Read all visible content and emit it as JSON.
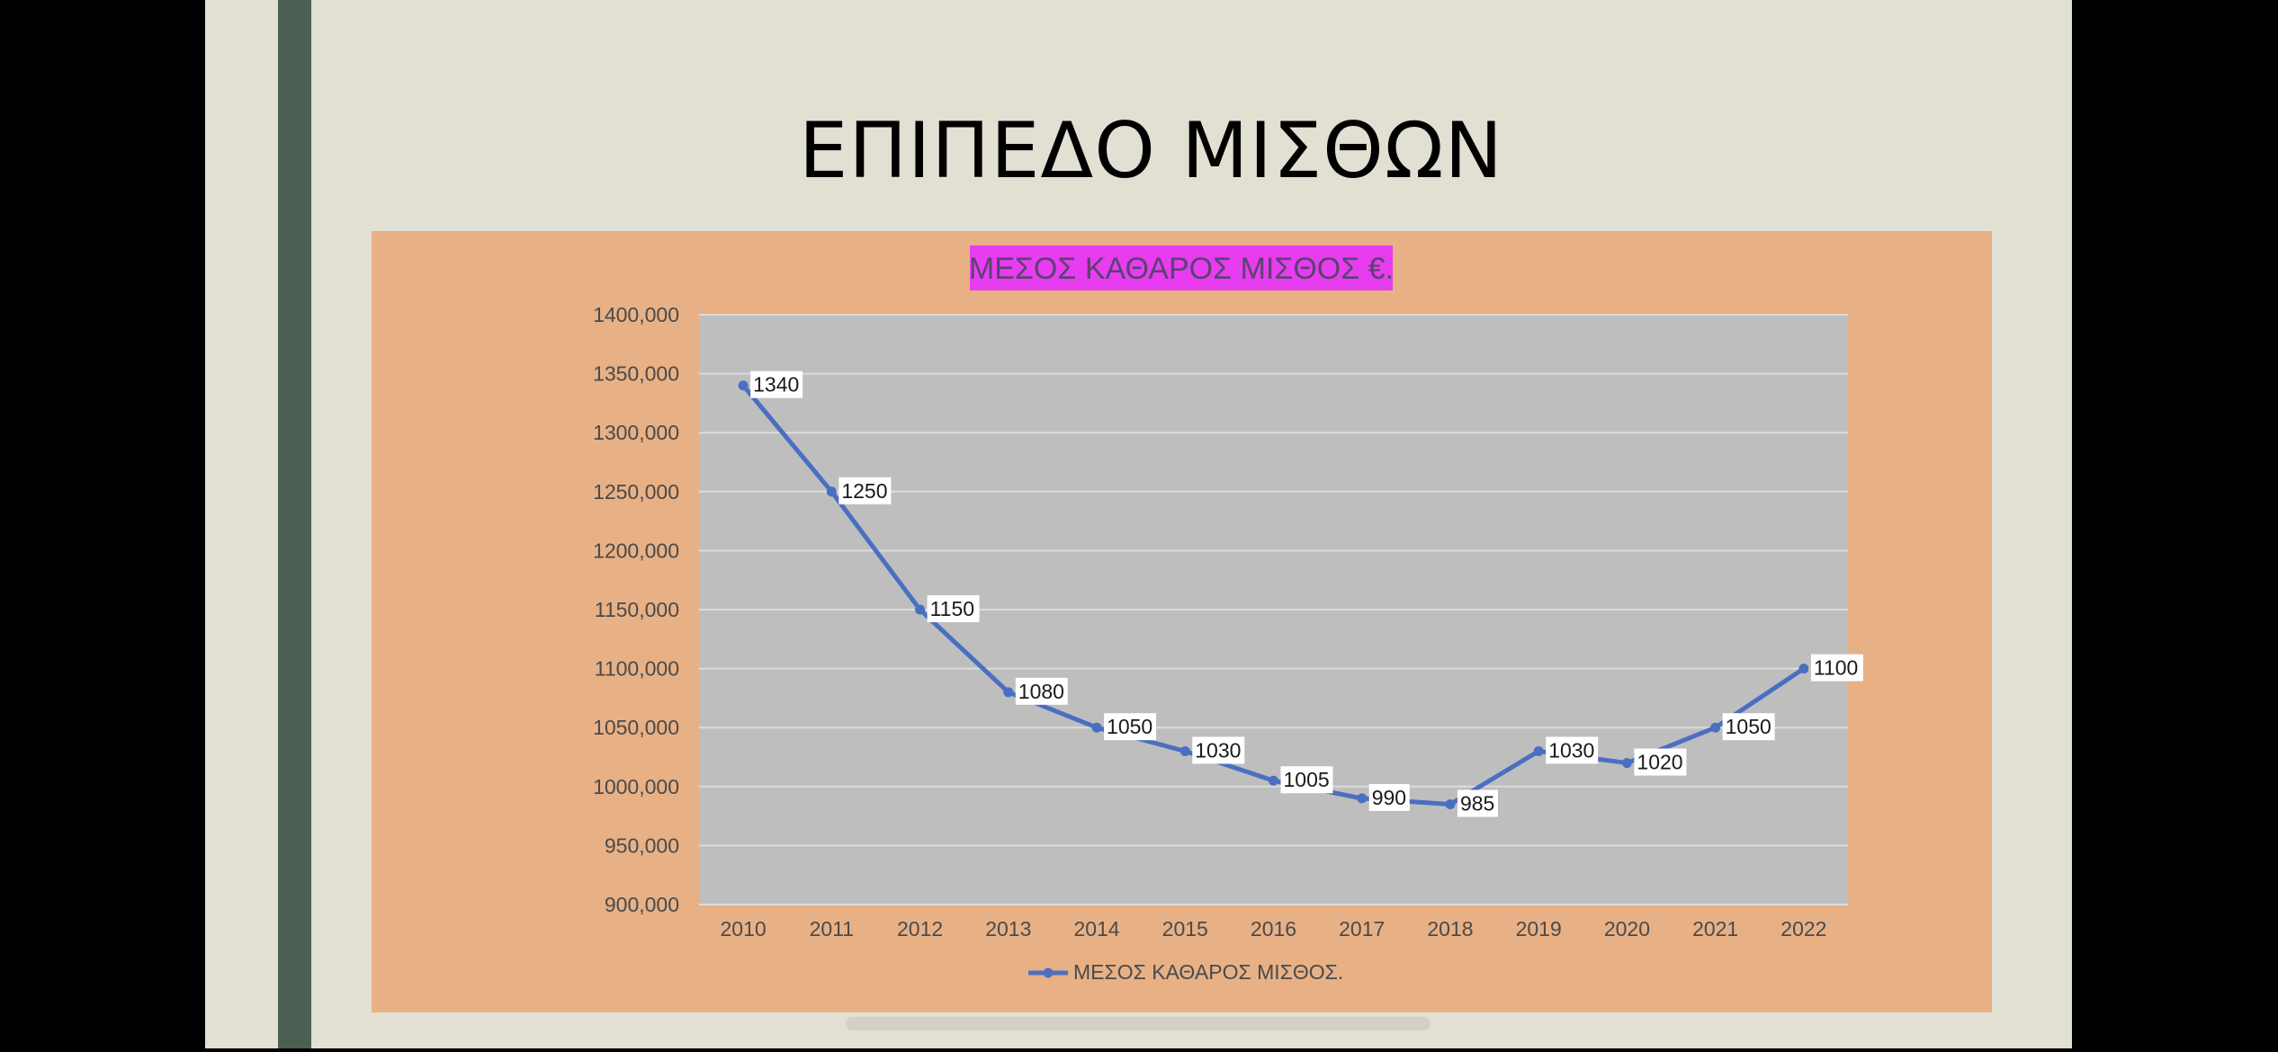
{
  "slide": {
    "title": "ΕΠΙΠΕΔΟ ΜΙΣΘΩΝ"
  },
  "colors": {
    "background": "#000000",
    "slide": "#e2dfd3",
    "side_bar": "#4b5f52",
    "chart_area": "#e8b085",
    "plot_area": "#bebebe",
    "series_line": "#4a6fc2",
    "title_highlight": "#e83cf0"
  },
  "chart_data": {
    "type": "line",
    "title": "ΜΕΣΟΣ ΚΑΘΑΡΟΣ ΜΙΣΘΟΣ €.",
    "categories": [
      "2010",
      "2011",
      "2012",
      "2013",
      "2014",
      "2015",
      "2016",
      "2017",
      "2018",
      "2019",
      "2020",
      "2021",
      "2022"
    ],
    "series": [
      {
        "name": "ΜΕΣΟΣ ΚΑΘΑΡΟΣ ΜΙΣΘΟΣ.",
        "values": [
          1340,
          1250,
          1150,
          1080,
          1050,
          1030,
          1005,
          990,
          985,
          1030,
          1020,
          1050,
          1100
        ]
      }
    ],
    "ylim": [
      900,
      1400
    ],
    "y_ticks": [
      "900,000",
      "950,000",
      "1000,000",
      "1050,000",
      "1100,000",
      "1150,000",
      "1200,000",
      "1250,000",
      "1300,000",
      "1350,000",
      "1400,000"
    ],
    "grid": true,
    "data_labels": true,
    "legend_position": "bottom"
  }
}
